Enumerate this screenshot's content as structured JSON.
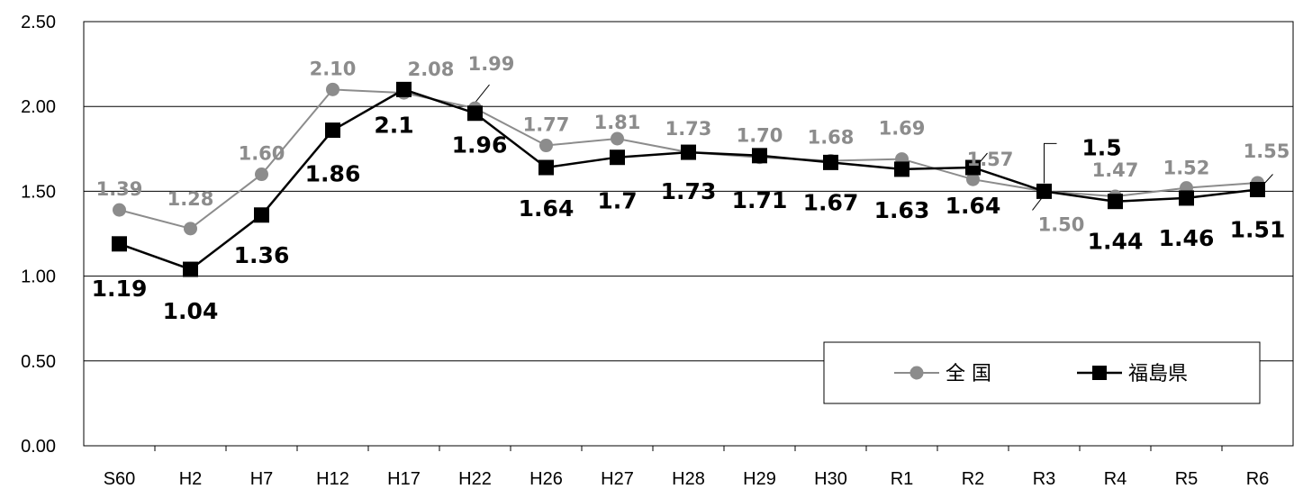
{
  "chart_data": {
    "type": "line",
    "categories": [
      "S60",
      "H2",
      "H7",
      "H12",
      "H17",
      "H22",
      "H26",
      "H27",
      "H28",
      "H29",
      "H30",
      "R1",
      "R2",
      "R3",
      "R4",
      "R5",
      "R6"
    ],
    "ylim": [
      0,
      2.5
    ],
    "yticks": [
      "0.00",
      "0.50",
      "1.00",
      "1.50",
      "2.00",
      "2.50"
    ],
    "grid": "horizontal",
    "legend_position": "bottom-right",
    "series": [
      {
        "name": "全 国",
        "color": "#8c8c8c",
        "marker": "circle",
        "values": [
          1.39,
          1.28,
          1.6,
          2.1,
          2.08,
          1.99,
          1.77,
          1.81,
          1.73,
          1.7,
          1.68,
          1.69,
          1.57,
          1.5,
          1.47,
          1.52,
          1.55
        ],
        "labels": [
          "1.39",
          "1.28",
          "1.60",
          "2.10",
          "2.08",
          "1.99",
          "1.77",
          "1.81",
          "1.73",
          "1.70",
          "1.68",
          "1.69",
          "1.57",
          "1.50",
          "1.47",
          "1.52",
          "1.55"
        ]
      },
      {
        "name": "福島県",
        "color": "#000000",
        "marker": "square",
        "values": [
          1.19,
          1.04,
          1.36,
          1.86,
          2.1,
          1.96,
          1.64,
          1.7,
          1.73,
          1.71,
          1.67,
          1.63,
          1.64,
          1.5,
          1.44,
          1.46,
          1.51
        ],
        "labels": [
          "1.19",
          "1.04",
          "1.36",
          "1.86",
          "2.1",
          "1.96",
          "1.64",
          "1.7",
          "1.73",
          "1.71",
          "1.67",
          "1.63",
          "1.64",
          "1.5",
          "1.44",
          "1.46",
          "1.51"
        ]
      }
    ]
  }
}
